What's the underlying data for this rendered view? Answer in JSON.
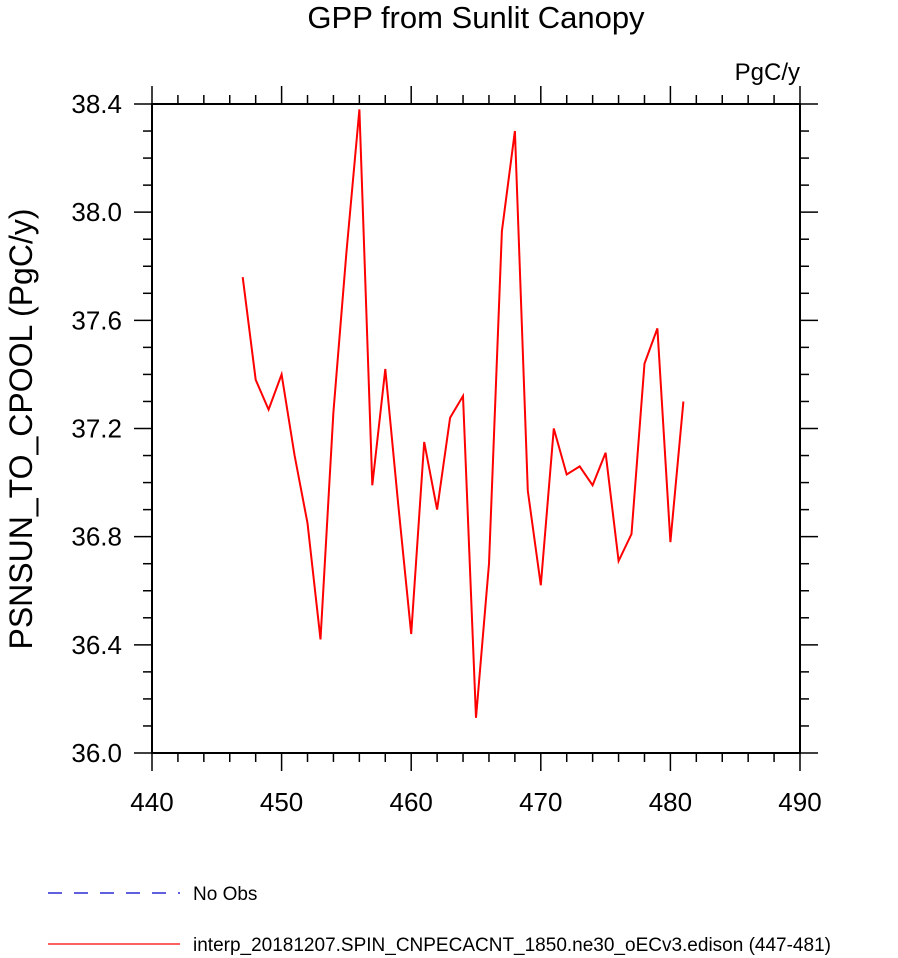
{
  "chart_data": {
    "type": "line",
    "title": "GPP from Sunlit Canopy",
    "units_label": "PgC/y",
    "ylabel": "PSNSUN_TO_CPOOL  (PgC/y)",
    "xlabel": "",
    "xlim": [
      440,
      490
    ],
    "ylim": [
      36.0,
      38.4
    ],
    "x_ticks": [
      440,
      450,
      460,
      470,
      480,
      490
    ],
    "x_tick_labels": [
      "440",
      "450",
      "460",
      "470",
      "480",
      "490"
    ],
    "y_ticks": [
      36.0,
      36.4,
      36.8,
      37.2,
      37.6,
      38.0,
      38.4
    ],
    "y_tick_labels": [
      "36.0",
      "36.4",
      "36.8",
      "37.2",
      "37.6",
      "38.0",
      "38.4"
    ],
    "grid": false,
    "legend_position": "bottom-left",
    "series": [
      {
        "name": "No Obs",
        "color": "#0000cc",
        "dash": true,
        "x": [],
        "y": []
      },
      {
        "name": "interp_20181207.SPIN_CNPECACNT_1850.ne30_oECv3.edison (447-481)",
        "color": "#ff0000",
        "dash": false,
        "x": [
          447,
          448,
          449,
          450,
          451,
          452,
          453,
          454,
          455,
          456,
          457,
          458,
          459,
          460,
          461,
          462,
          463,
          464,
          465,
          466,
          467,
          468,
          469,
          470,
          471,
          472,
          473,
          474,
          475,
          476,
          477,
          478,
          479,
          480,
          481
        ],
        "y": [
          37.76,
          37.38,
          37.27,
          37.4,
          37.1,
          36.85,
          36.42,
          37.26,
          37.85,
          38.38,
          36.99,
          37.42,
          36.92,
          36.44,
          37.15,
          36.9,
          37.24,
          37.32,
          36.13,
          36.7,
          37.93,
          38.3,
          36.97,
          36.62,
          37.2,
          37.03,
          37.06,
          36.99,
          37.11,
          36.71,
          36.81,
          37.44,
          37.57,
          36.78,
          37.3
        ]
      }
    ]
  }
}
